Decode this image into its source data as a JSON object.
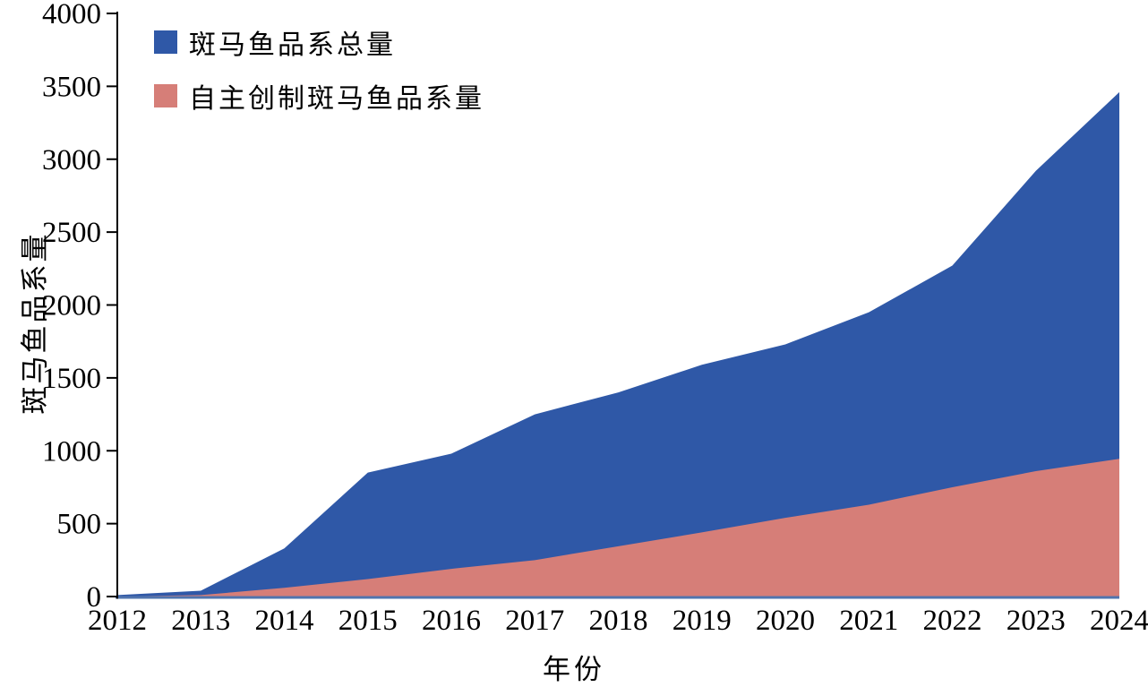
{
  "chart_data": {
    "type": "area",
    "title": "",
    "xlabel": "年份",
    "ylabel": "斑马鱼品系量",
    "x": [
      2012,
      2013,
      2014,
      2015,
      2016,
      2017,
      2018,
      2019,
      2020,
      2021,
      2022,
      2023,
      2024
    ],
    "series": [
      {
        "name": "斑马鱼品系总量",
        "color": "#2F58A7",
        "values": [
          10,
          40,
          330,
          850,
          980,
          1250,
          1400,
          1590,
          1730,
          1950,
          2270,
          2920,
          3460
        ]
      },
      {
        "name": "自主创制斑马鱼品系量",
        "color": "#D67E78",
        "values": [
          0,
          10,
          60,
          120,
          190,
          250,
          345,
          440,
          540,
          630,
          750,
          860,
          945
        ]
      }
    ],
    "ylim": [
      0,
      4000
    ],
    "yticks": [
      0,
      500,
      1000,
      1500,
      2000,
      2500,
      3000,
      3500,
      4000
    ],
    "xlim": [
      2012,
      2024
    ],
    "grid": false,
    "legend_position": "top-left",
    "axis_colors": {
      "y_axis": "#000000",
      "x_axis_line": "#5074AE",
      "tick_label": "#000000"
    }
  }
}
